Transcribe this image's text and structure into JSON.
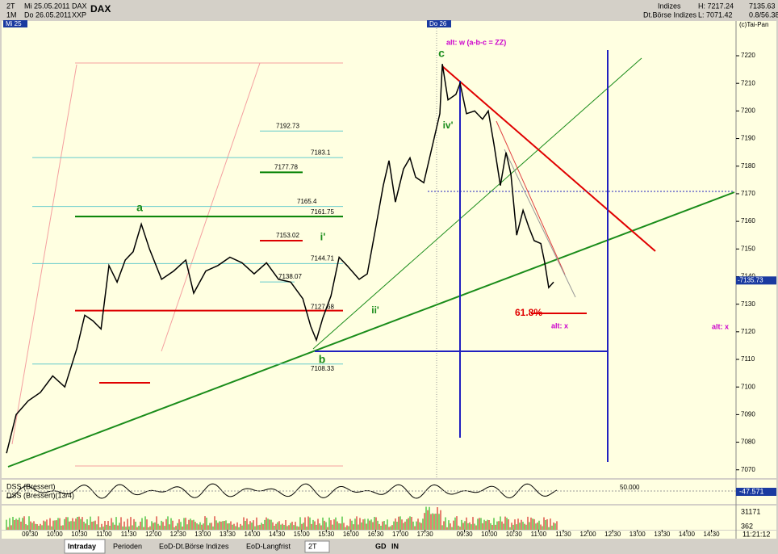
{
  "header": {
    "period": "2T",
    "date_from": "Mi 25.05.2011",
    "span": "1M",
    "date_to": "Do 26.05.2011",
    "symbol": "DAX",
    "exchange": "XXP",
    "title": "DAX",
    "group": "Indizes",
    "high": "H: 7217.24",
    "last": "7135.63",
    "source": "Dt.Börse Indizes",
    "low": "L: 7071.42",
    "change": "0.8/56.38",
    "copyright": "(c)Tai-Pan",
    "day1": "Mi 25",
    "day2": "Do 26"
  },
  "chart_data": {
    "type": "line",
    "color": "#000000",
    "x": [
      -0.95,
      -0.56,
      -0.07,
      0.42,
      0.92,
      1.41,
      1.9,
      2.22,
      2.55,
      2.88,
      3.2,
      3.53,
      3.86,
      4.18,
      4.51,
      4.84,
      5.33,
      5.82,
      6.31,
      6.63,
      7.12,
      7.61,
      8.1,
      8.59,
      9.08,
      9.58,
      10.07,
      10.56,
      11.05,
      11.37,
      11.6,
      11.86,
      12.19,
      12.52,
      12.84,
      13.33,
      13.66,
      13.99,
      14.31,
      14.54,
      14.8,
      15.13,
      15.39,
      15.62,
      15.95,
      16.6,
      16.7,
      16.93,
      17.25,
      17.42,
      17.68,
      18.01,
      18.33,
      18.56,
      18.79,
      19.05,
      19.28,
      19.48,
      19.71,
      19.97,
      20.2,
      20.42,
      20.69,
      20.85,
      21.01,
      21.21
    ],
    "values": [
      7076,
      7090,
      7095,
      7098,
      7104,
      7100,
      7114,
      7126,
      7124,
      7121,
      7144,
      7138,
      7146,
      7149,
      7159,
      7150,
      7139,
      7142,
      7146,
      7134,
      7142,
      7144,
      7147,
      7145,
      7141,
      7145,
      7139,
      7138,
      7132,
      7122,
      7117,
      7125,
      7133,
      7147,
      7144,
      7139,
      7141,
      7157,
      7173,
      7182,
      7167,
      7179,
      7183,
      7176,
      7174,
      7199,
      7217,
      7204,
      7206,
      7210,
      7199,
      7200,
      7197,
      7200,
      7188,
      7173,
      7185,
      7177,
      7155,
      7164,
      7158,
      7153,
      7152,
      7145,
      7136,
      7138
    ],
    "xlim": [
      -1.05,
      28.53
    ],
    "ylim": [
      7067,
      7232
    ],
    "yticks": [
      7070,
      7080,
      7090,
      7100,
      7110,
      7120,
      7130,
      7140,
      7150,
      7160,
      7170,
      7180,
      7190,
      7200,
      7210,
      7220
    ],
    "xticks": [
      {
        "value": 0,
        "label": "09:30"
      },
      {
        "value": 1,
        "label": "10:00"
      },
      {
        "value": 2,
        "label": "10:30"
      },
      {
        "value": 3,
        "label": "11:00"
      },
      {
        "value": 4,
        "label": "11:30"
      },
      {
        "value": 5,
        "label": "12:00"
      },
      {
        "value": 6,
        "label": "12:30"
      },
      {
        "value": 7,
        "label": "13:00"
      },
      {
        "value": 8,
        "label": "13:30"
      },
      {
        "value": 9,
        "label": "14:00"
      },
      {
        "value": 10,
        "label": "14:30"
      },
      {
        "value": 11,
        "label": "15:00"
      },
      {
        "value": 12,
        "label": "15:30"
      },
      {
        "value": 13,
        "label": "16:00"
      },
      {
        "value": 14,
        "label": "16:30"
      },
      {
        "value": 15,
        "label": "17:00"
      },
      {
        "value": 16,
        "label": "17:30"
      },
      {
        "value": 17.6,
        "label": "09:30"
      },
      {
        "value": 18.6,
        "label": "10:00"
      },
      {
        "value": 19.6,
        "label": "10:30"
      },
      {
        "value": 20.6,
        "label": "11:00"
      },
      {
        "value": 21.6,
        "label": "11:30"
      },
      {
        "value": 22.6,
        "label": "12:00"
      },
      {
        "value": 23.6,
        "label": "12:30"
      },
      {
        "value": 24.6,
        "label": "13:00"
      },
      {
        "value": 25.6,
        "label": "13:30"
      },
      {
        "value": 26.6,
        "label": "14:00"
      },
      {
        "value": 27.6,
        "label": "14:30"
      }
    ],
    "levels": [
      {
        "value": 7192.73,
        "color": "#66cccc"
      },
      {
        "value": 7183.1,
        "color": "#66cccc"
      },
      {
        "value": 7177.78,
        "color": "#008000"
      },
      {
        "value": 7165.4,
        "color": "#66cccc"
      },
      {
        "value": 7161.75,
        "color": "#008000"
      },
      {
        "value": 7153.02,
        "color": "#dd0000"
      },
      {
        "value": 7144.71,
        "color": "#66cccc"
      },
      {
        "value": 7138.07,
        "color": "#66cccc"
      },
      {
        "value": 7127.68,
        "color": "#dd0000"
      },
      {
        "value": 7108.33,
        "color": "#66cccc"
      }
    ],
    "price_marker": "-7135.73",
    "annotations": [
      "a",
      "b",
      "c",
      "i'",
      "ii'",
      "iv'",
      "alt: w (a-b-c = ZZ)",
      "61.8%",
      "alt: x",
      "alt: x"
    ]
  },
  "indicator": {
    "name1": "DSS (Bressert)",
    "name2": "DSS (Bressert)(13/4)",
    "level": "50.000",
    "last": "-47.571"
  },
  "volume": {
    "max": "31171",
    "min": "362"
  },
  "clock": "11:21:12",
  "tabs": [
    "Intraday",
    "Perioden",
    "EoD-Dt.Börse Indizes",
    "EoD-Langfrist"
  ],
  "toolbar": [
    "2T",
    "GD",
    "IN"
  ]
}
